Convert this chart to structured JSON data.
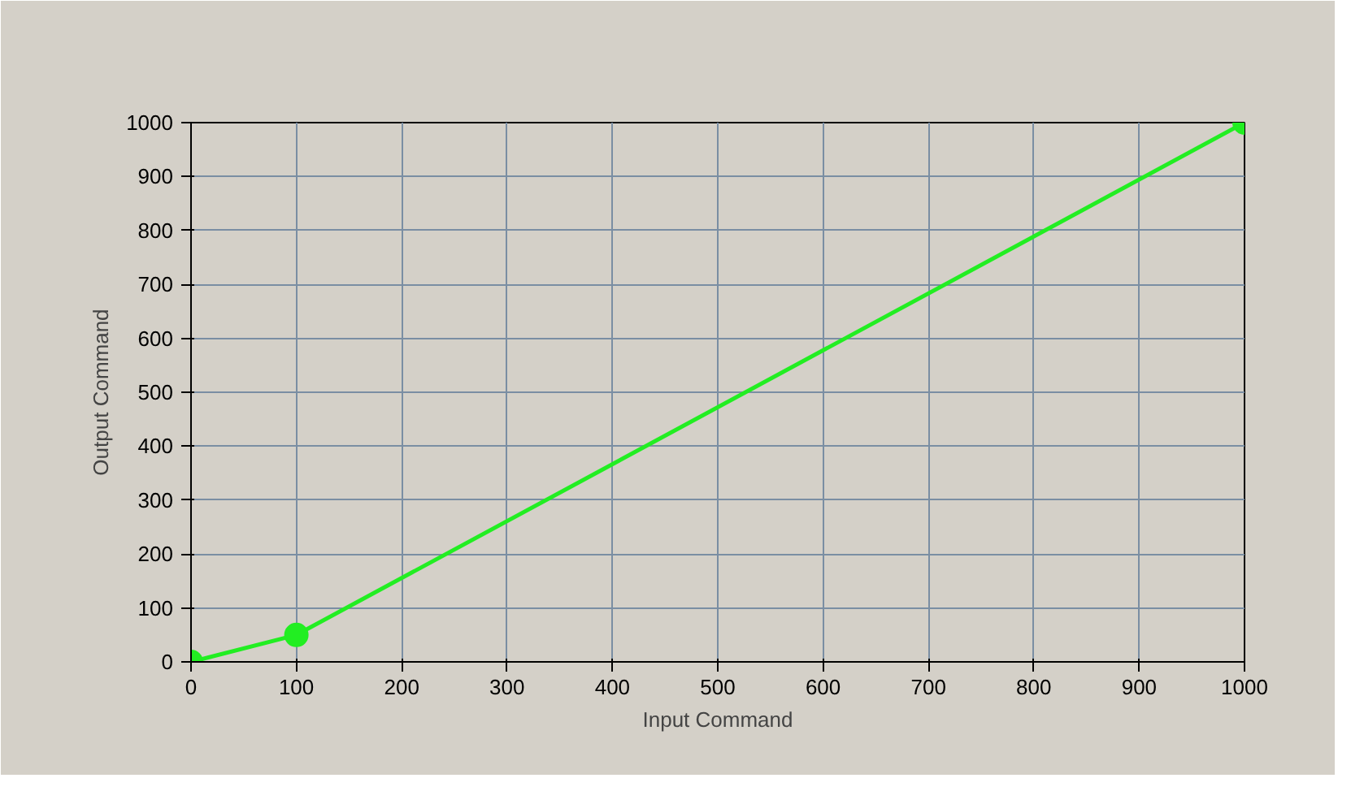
{
  "chart_data": {
    "type": "line",
    "xlabel": "Input Command",
    "ylabel": "Output Command",
    "x": [
      0,
      100,
      1000
    ],
    "series": [
      {
        "color": "#22ee22",
        "values": [
          0,
          50,
          1000
        ]
      }
    ],
    "xlim": [
      0,
      1000
    ],
    "ylim": [
      0,
      1000
    ],
    "xticks": [
      0,
      100,
      200,
      300,
      400,
      500,
      600,
      700,
      800,
      900,
      1000
    ],
    "yticks": [
      0,
      100,
      200,
      300,
      400,
      500,
      600,
      700,
      800,
      900,
      1000
    ],
    "grid": true,
    "marker": "circle",
    "line_style": "solid"
  }
}
